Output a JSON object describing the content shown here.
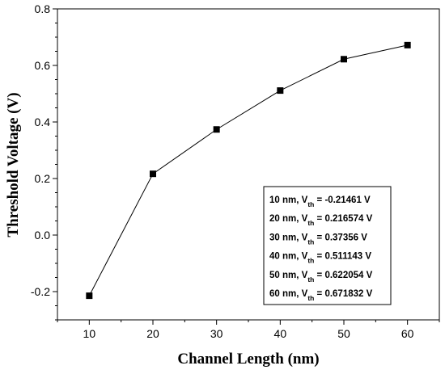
{
  "chart_data": {
    "type": "line",
    "title": "",
    "xlabel": "Channel Length (nm)",
    "ylabel": "Threshold Voltage (V)",
    "xlim": [
      5,
      65
    ],
    "ylim": [
      -0.3,
      0.8
    ],
    "x_ticks": [
      10,
      20,
      30,
      40,
      50,
      60
    ],
    "x_tick_labels": [
      "10",
      "20",
      "30",
      "40",
      "50",
      "60"
    ],
    "y_ticks": [
      -0.2,
      0.0,
      0.2,
      0.4,
      0.6,
      0.8
    ],
    "y_tick_labels": [
      "-0.2",
      "0.0",
      "0.2",
      "0.4",
      "0.6",
      "0.8"
    ],
    "grid": false,
    "legend_position": "bottom-right",
    "series": [
      {
        "x": [
          10,
          20,
          30,
          40,
          50,
          60
        ],
        "values": [
          -0.21461,
          0.216574,
          0.37356,
          0.511143,
          0.622054,
          0.671832
        ],
        "marker": "square",
        "color": "#000000"
      }
    ],
    "annotations": [
      {
        "prefix": "10 nm, V",
        "sub": "th",
        "suffix": " = -0.21461 V"
      },
      {
        "prefix": "20 nm, V",
        "sub": "th",
        "suffix": " = 0.216574 V"
      },
      {
        "prefix": "30 nm, V",
        "sub": "th",
        "suffix": " = 0.37356 V"
      },
      {
        "prefix": "40 nm, V",
        "sub": "th",
        "suffix": " = 0.511143 V"
      },
      {
        "prefix": "50 nm, V",
        "sub": "th",
        "suffix": " = 0.622054 V"
      },
      {
        "prefix": "60 nm, V",
        "sub": "th",
        "suffix": " = 0.671832 V"
      }
    ]
  }
}
